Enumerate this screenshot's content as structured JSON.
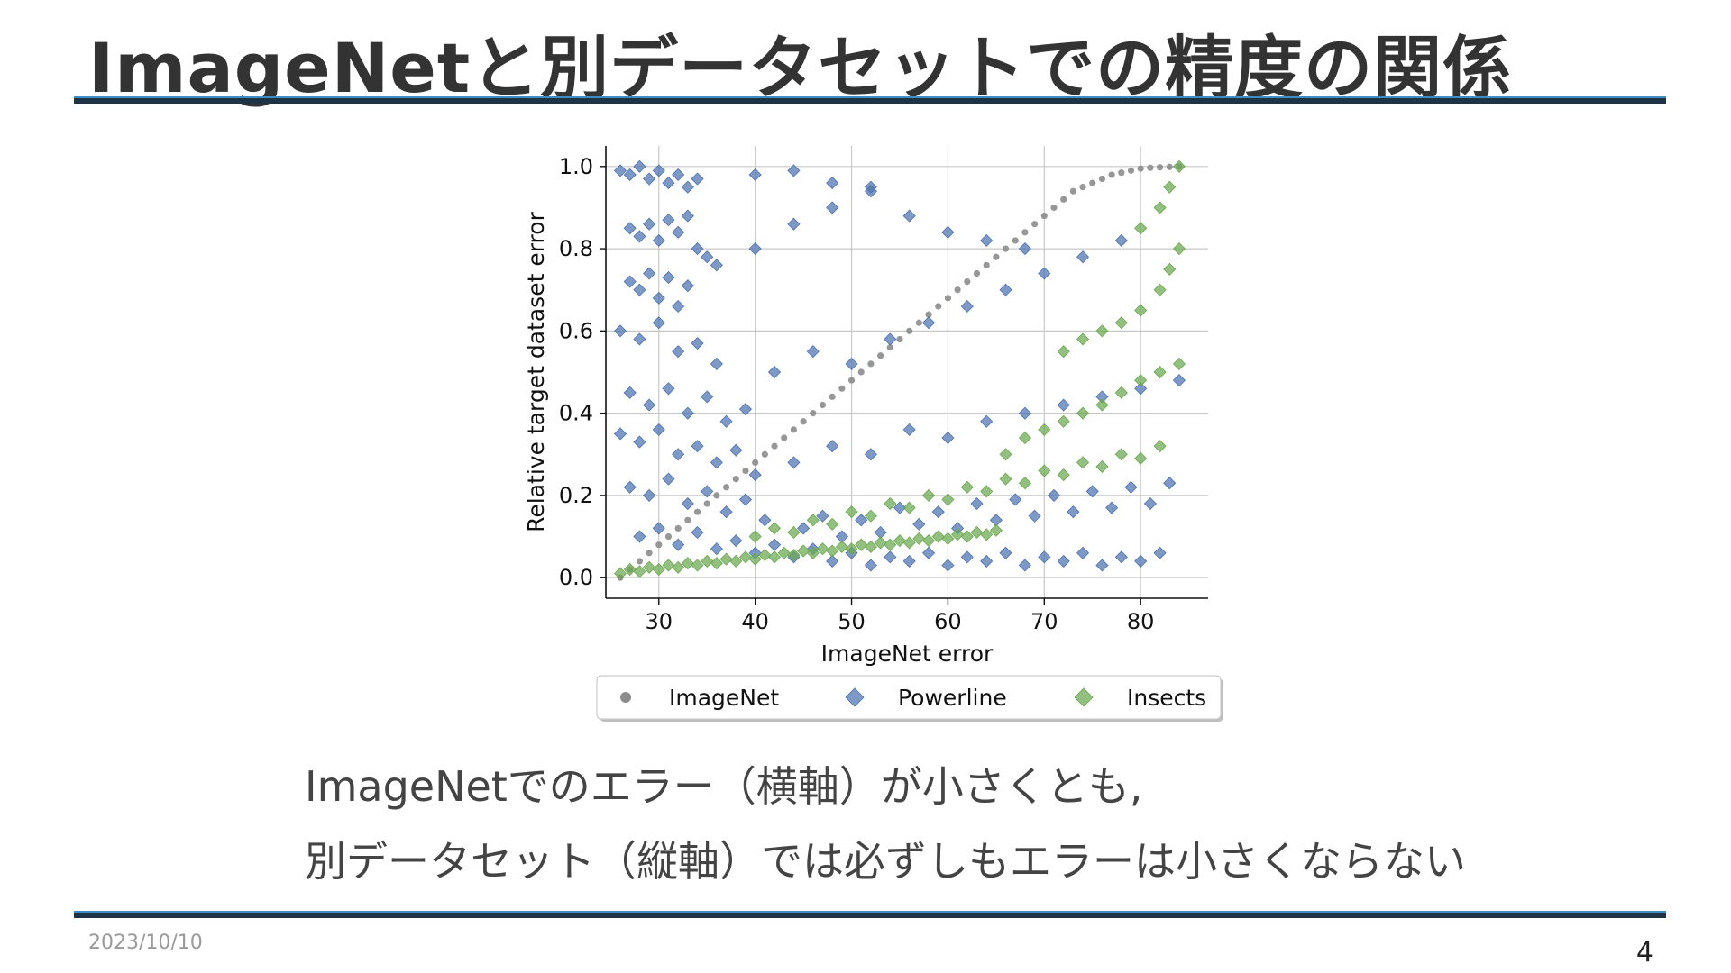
{
  "slide": {
    "title": "ImageNetと別データセットでの精度の関係",
    "caption_line1": "ImageNetでのエラー（横軸）が小さくとも,",
    "caption_line2": "別データセット（縦軸）では必ずしもエラーは小さくならない",
    "date": "2023/10/10",
    "page_number": "4",
    "colors": {
      "rule": "#1d3346",
      "rule_highlight": "#3b8fc4",
      "title": "#333333"
    }
  },
  "chart_data": {
    "type": "scatter",
    "title": "",
    "xlabel": "ImageNet error",
    "ylabel": "Relative target dataset error",
    "xlim": [
      24.5,
      87
    ],
    "ylim": [
      -0.05,
      1.05
    ],
    "xticks": [
      30,
      40,
      50,
      60,
      70,
      80
    ],
    "yticks": [
      0.0,
      0.2,
      0.4,
      0.6,
      0.8,
      1.0
    ],
    "xtick_labels": [
      "30",
      "40",
      "50",
      "60",
      "70",
      "80"
    ],
    "ytick_labels": [
      "0.0",
      "0.2",
      "0.4",
      "0.6",
      "0.8",
      "1.0"
    ],
    "grid": true,
    "legend_position": "bottom",
    "series": [
      {
        "name": "ImageNet",
        "marker": "circle",
        "color": "#8c8c8c",
        "points": [
          [
            26,
            0.0
          ],
          [
            27,
            0.02
          ],
          [
            28,
            0.04
          ],
          [
            29,
            0.06
          ],
          [
            30,
            0.08
          ],
          [
            31,
            0.1
          ],
          [
            32,
            0.12
          ],
          [
            33,
            0.14
          ],
          [
            34,
            0.16
          ],
          [
            35,
            0.18
          ],
          [
            36,
            0.2
          ],
          [
            37,
            0.22
          ],
          [
            38,
            0.24
          ],
          [
            39,
            0.26
          ],
          [
            40,
            0.28
          ],
          [
            41,
            0.3
          ],
          [
            42,
            0.32
          ],
          [
            43,
            0.34
          ],
          [
            44,
            0.36
          ],
          [
            45,
            0.38
          ],
          [
            46,
            0.4
          ],
          [
            47,
            0.42
          ],
          [
            48,
            0.44
          ],
          [
            49,
            0.46
          ],
          [
            50,
            0.48
          ],
          [
            51,
            0.5
          ],
          [
            52,
            0.52
          ],
          [
            53,
            0.54
          ],
          [
            54,
            0.56
          ],
          [
            55,
            0.58
          ],
          [
            56,
            0.6
          ],
          [
            57,
            0.62
          ],
          [
            58,
            0.64
          ],
          [
            59,
            0.66
          ],
          [
            60,
            0.68
          ],
          [
            61,
            0.7
          ],
          [
            62,
            0.72
          ],
          [
            63,
            0.74
          ],
          [
            64,
            0.76
          ],
          [
            65,
            0.78
          ],
          [
            66,
            0.8
          ],
          [
            67,
            0.82
          ],
          [
            68,
            0.84
          ],
          [
            69,
            0.86
          ],
          [
            70,
            0.88
          ],
          [
            71,
            0.9
          ],
          [
            72,
            0.92
          ],
          [
            73,
            0.94
          ],
          [
            74,
            0.95
          ],
          [
            75,
            0.96
          ],
          [
            76,
            0.97
          ],
          [
            77,
            0.98
          ],
          [
            78,
            0.985
          ],
          [
            79,
            0.99
          ],
          [
            80,
            0.995
          ],
          [
            81,
            0.997
          ],
          [
            82,
            0.998
          ],
          [
            83,
            0.999
          ],
          [
            84,
            1.0
          ]
        ]
      },
      {
        "name": "Powerline",
        "marker": "diamond",
        "color": "#4c72b0",
        "points": [
          [
            26,
            0.99
          ],
          [
            27,
            0.98
          ],
          [
            28,
            1.0
          ],
          [
            29,
            0.97
          ],
          [
            30,
            0.99
          ],
          [
            31,
            0.96
          ],
          [
            32,
            0.98
          ],
          [
            33,
            0.95
          ],
          [
            34,
            0.97
          ],
          [
            27,
            0.85
          ],
          [
            28,
            0.83
          ],
          [
            29,
            0.86
          ],
          [
            30,
            0.82
          ],
          [
            31,
            0.87
          ],
          [
            32,
            0.84
          ],
          [
            33,
            0.88
          ],
          [
            34,
            0.8
          ],
          [
            35,
            0.78
          ],
          [
            27,
            0.72
          ],
          [
            28,
            0.7
          ],
          [
            29,
            0.74
          ],
          [
            30,
            0.68
          ],
          [
            31,
            0.73
          ],
          [
            32,
            0.66
          ],
          [
            33,
            0.71
          ],
          [
            36,
            0.76
          ],
          [
            26,
            0.6
          ],
          [
            28,
            0.58
          ],
          [
            30,
            0.62
          ],
          [
            32,
            0.55
          ],
          [
            34,
            0.57
          ],
          [
            36,
            0.52
          ],
          [
            27,
            0.45
          ],
          [
            29,
            0.42
          ],
          [
            31,
            0.46
          ],
          [
            33,
            0.4
          ],
          [
            35,
            0.44
          ],
          [
            37,
            0.38
          ],
          [
            39,
            0.41
          ],
          [
            26,
            0.35
          ],
          [
            28,
            0.33
          ],
          [
            30,
            0.36
          ],
          [
            32,
            0.3
          ],
          [
            34,
            0.32
          ],
          [
            36,
            0.28
          ],
          [
            38,
            0.31
          ],
          [
            40,
            0.25
          ],
          [
            27,
            0.22
          ],
          [
            29,
            0.2
          ],
          [
            31,
            0.24
          ],
          [
            33,
            0.18
          ],
          [
            35,
            0.21
          ],
          [
            37,
            0.16
          ],
          [
            39,
            0.19
          ],
          [
            41,
            0.14
          ],
          [
            28,
            0.1
          ],
          [
            30,
            0.12
          ],
          [
            32,
            0.08
          ],
          [
            34,
            0.11
          ],
          [
            36,
            0.07
          ],
          [
            38,
            0.09
          ],
          [
            40,
            0.06
          ],
          [
            42,
            0.08
          ],
          [
            44,
            0.05
          ],
          [
            46,
            0.07
          ],
          [
            48,
            0.04
          ],
          [
            50,
            0.06
          ],
          [
            52,
            0.03
          ],
          [
            54,
            0.05
          ],
          [
            56,
            0.04
          ],
          [
            58,
            0.06
          ],
          [
            60,
            0.03
          ],
          [
            62,
            0.05
          ],
          [
            64,
            0.04
          ],
          [
            66,
            0.06
          ],
          [
            68,
            0.03
          ],
          [
            70,
            0.05
          ],
          [
            72,
            0.04
          ],
          [
            74,
            0.06
          ],
          [
            76,
            0.03
          ],
          [
            78,
            0.05
          ],
          [
            80,
            0.04
          ],
          [
            82,
            0.06
          ],
          [
            45,
            0.12
          ],
          [
            47,
            0.15
          ],
          [
            49,
            0.1
          ],
          [
            51,
            0.14
          ],
          [
            53,
            0.11
          ],
          [
            55,
            0.17
          ],
          [
            57,
            0.13
          ],
          [
            59,
            0.16
          ],
          [
            61,
            0.12
          ],
          [
            63,
            0.18
          ],
          [
            65,
            0.14
          ],
          [
            67,
            0.19
          ],
          [
            69,
            0.15
          ],
          [
            71,
            0.2
          ],
          [
            73,
            0.16
          ],
          [
            75,
            0.21
          ],
          [
            77,
            0.17
          ],
          [
            79,
            0.22
          ],
          [
            81,
            0.18
          ],
          [
            83,
            0.23
          ],
          [
            44,
            0.28
          ],
          [
            48,
            0.32
          ],
          [
            52,
            0.3
          ],
          [
            56,
            0.36
          ],
          [
            60,
            0.34
          ],
          [
            64,
            0.38
          ],
          [
            68,
            0.4
          ],
          [
            72,
            0.42
          ],
          [
            76,
            0.44
          ],
          [
            80,
            0.46
          ],
          [
            84,
            0.48
          ],
          [
            42,
            0.5
          ],
          [
            46,
            0.55
          ],
          [
            50,
            0.52
          ],
          [
            54,
            0.58
          ],
          [
            58,
            0.62
          ],
          [
            62,
            0.66
          ],
          [
            66,
            0.7
          ],
          [
            70,
            0.74
          ],
          [
            74,
            0.78
          ],
          [
            78,
            0.82
          ],
          [
            40,
            0.8
          ],
          [
            44,
            0.86
          ],
          [
            48,
            0.9
          ],
          [
            52,
            0.94
          ],
          [
            56,
            0.88
          ],
          [
            60,
            0.84
          ],
          [
            64,
            0.82
          ],
          [
            68,
            0.8
          ],
          [
            40,
            0.98
          ],
          [
            44,
            0.99
          ],
          [
            48,
            0.96
          ],
          [
            52,
            0.95
          ]
        ]
      },
      {
        "name": "Insects",
        "marker": "diamond",
        "color": "#6aa84f",
        "points": [
          [
            26,
            0.01
          ],
          [
            27,
            0.02
          ],
          [
            28,
            0.015
          ],
          [
            29,
            0.025
          ],
          [
            30,
            0.02
          ],
          [
            31,
            0.03
          ],
          [
            32,
            0.025
          ],
          [
            33,
            0.035
          ],
          [
            34,
            0.03
          ],
          [
            35,
            0.04
          ],
          [
            36,
            0.035
          ],
          [
            37,
            0.045
          ],
          [
            38,
            0.04
          ],
          [
            39,
            0.05
          ],
          [
            40,
            0.045
          ],
          [
            41,
            0.055
          ],
          [
            42,
            0.05
          ],
          [
            43,
            0.06
          ],
          [
            44,
            0.055
          ],
          [
            45,
            0.065
          ],
          [
            46,
            0.06
          ],
          [
            47,
            0.07
          ],
          [
            48,
            0.065
          ],
          [
            49,
            0.075
          ],
          [
            50,
            0.07
          ],
          [
            51,
            0.08
          ],
          [
            52,
            0.075
          ],
          [
            53,
            0.085
          ],
          [
            54,
            0.08
          ],
          [
            55,
            0.09
          ],
          [
            56,
            0.085
          ],
          [
            57,
            0.095
          ],
          [
            58,
            0.09
          ],
          [
            59,
            0.1
          ],
          [
            60,
            0.095
          ],
          [
            61,
            0.105
          ],
          [
            62,
            0.1
          ],
          [
            63,
            0.11
          ],
          [
            64,
            0.105
          ],
          [
            65,
            0.115
          ],
          [
            40,
            0.1
          ],
          [
            42,
            0.12
          ],
          [
            44,
            0.11
          ],
          [
            46,
            0.14
          ],
          [
            48,
            0.13
          ],
          [
            50,
            0.16
          ],
          [
            52,
            0.15
          ],
          [
            54,
            0.18
          ],
          [
            56,
            0.17
          ],
          [
            58,
            0.2
          ],
          [
            60,
            0.19
          ],
          [
            62,
            0.22
          ],
          [
            64,
            0.21
          ],
          [
            66,
            0.24
          ],
          [
            68,
            0.23
          ],
          [
            70,
            0.26
          ],
          [
            72,
            0.25
          ],
          [
            74,
            0.28
          ],
          [
            76,
            0.27
          ],
          [
            78,
            0.3
          ],
          [
            80,
            0.29
          ],
          [
            82,
            0.32
          ],
          [
            66,
            0.3
          ],
          [
            68,
            0.34
          ],
          [
            70,
            0.36
          ],
          [
            72,
            0.38
          ],
          [
            74,
            0.4
          ],
          [
            76,
            0.42
          ],
          [
            78,
            0.45
          ],
          [
            80,
            0.48
          ],
          [
            82,
            0.5
          ],
          [
            84,
            0.52
          ],
          [
            72,
            0.55
          ],
          [
            74,
            0.58
          ],
          [
            76,
            0.6
          ],
          [
            78,
            0.62
          ],
          [
            80,
            0.65
          ],
          [
            82,
            0.7
          ],
          [
            83,
            0.75
          ],
          [
            84,
            0.8
          ],
          [
            80,
            0.85
          ],
          [
            82,
            0.9
          ],
          [
            83,
            0.95
          ],
          [
            84,
            1.0
          ]
        ]
      }
    ]
  }
}
